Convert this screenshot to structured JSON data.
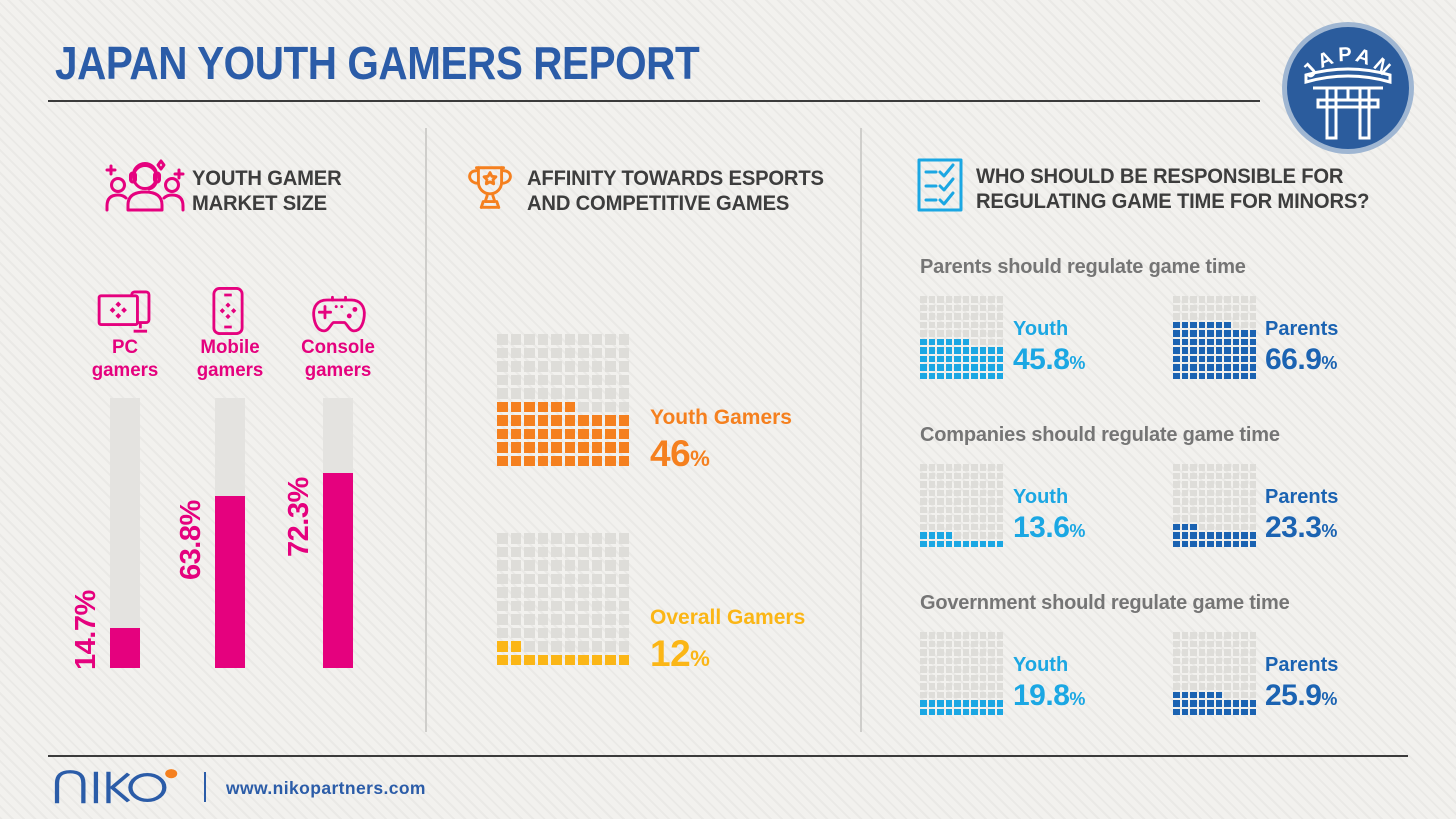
{
  "palette": {
    "title_blue": "#2B5CA8",
    "magenta": "#E5017E",
    "orange": "#F5801F",
    "yellow": "#FBB616",
    "youth_blue": "#1BA7E3",
    "parents_blue": "#1B63B2",
    "text_dark": "#3D3D3D",
    "heading_gray": "#757575",
    "waffle_empty": "#DEDDD9",
    "track_gray": "#E4E3E0",
    "badge_blue": "#2B5C9D"
  },
  "header": {
    "title": "JAPAN YOUTH GAMERS REPORT",
    "badge_label": "JAPAN",
    "badge_icon": "torii-gate-icon"
  },
  "market": {
    "icon": "gamer-group-icon",
    "title_line1": "YOUTH GAMER",
    "title_line2": "MARKET SIZE",
    "bar_color": "#E5017E",
    "bars": [
      {
        "icon": "pc-gamers-icon",
        "label_line1": "PC",
        "label_line2": "gamers",
        "value": 14.7,
        "display": "14.7%"
      },
      {
        "icon": "mobile-gamers-icon",
        "label_line1": "Mobile",
        "label_line2": "gamers",
        "value": 63.8,
        "display": "63.8%"
      },
      {
        "icon": "console-gamers-icon",
        "label_line1": "Console",
        "label_line2": "gamers",
        "value": 72.3,
        "display": "72.3%"
      }
    ]
  },
  "esports": {
    "icon": "trophy-icon",
    "title_line1": "AFFINITY TOWARDS ESPORTS",
    "title_line2": "AND COMPETITIVE GAMES",
    "waffles": [
      {
        "label": "Youth Gamers",
        "value": 46,
        "display": "46",
        "unit": "%",
        "color": "#F5801F"
      },
      {
        "label": "Overall Gamers",
        "value": 12,
        "display": "12",
        "unit": "%",
        "color": "#FBB616"
      }
    ]
  },
  "regulation": {
    "icon": "checklist-icon",
    "title_line1": "WHO SHOULD BE RESPONSIBLE FOR",
    "title_line2": "REGULATING GAME TIME FOR MINORS?",
    "groups": [
      {
        "heading": "Parents should regulate game time",
        "items": [
          {
            "label": "Youth",
            "value": 45.8,
            "display": "45.8",
            "unit": "%",
            "color": "#1BA7E3"
          },
          {
            "label": "Parents",
            "value": 66.9,
            "display": "66.9",
            "unit": "%",
            "color": "#1B63B2"
          }
        ]
      },
      {
        "heading": "Companies should regulate game time",
        "items": [
          {
            "label": "Youth",
            "value": 13.6,
            "display": "13.6",
            "unit": "%",
            "color": "#1BA7E3"
          },
          {
            "label": "Parents",
            "value": 23.3,
            "display": "23.3",
            "unit": "%",
            "color": "#1B63B2"
          }
        ]
      },
      {
        "heading": "Government should regulate game time",
        "items": [
          {
            "label": "Youth",
            "value": 19.8,
            "display": "19.8",
            "unit": "%",
            "color": "#1BA7E3"
          },
          {
            "label": "Parents",
            "value": 25.9,
            "display": "25.9",
            "unit": "%",
            "color": "#1B63B2"
          }
        ]
      }
    ]
  },
  "footer": {
    "logo_text": "niko",
    "url": "www.nikopartners.com"
  },
  "chart_data": [
    {
      "type": "bar",
      "variant": "vertical-percentage-bars",
      "title": "Youth Gamer Market Size",
      "categories": [
        "PC gamers",
        "Mobile gamers",
        "Console gamers"
      ],
      "values": [
        14.7,
        63.8,
        72.3
      ],
      "unit": "%",
      "ylim": [
        0,
        100
      ],
      "color": "#E5017E"
    },
    {
      "type": "bar",
      "variant": "waffle-10x10",
      "title": "Affinity towards esports and competitive games",
      "categories": [
        "Youth Gamers",
        "Overall Gamers"
      ],
      "values": [
        46,
        12
      ],
      "unit": "%",
      "colors": [
        "#F5801F",
        "#FBB616"
      ]
    },
    {
      "type": "bar",
      "variant": "waffle-10x10-pairs",
      "title": "Who should be responsible for regulating game time for minors?",
      "categories": [
        "Parents should regulate game time",
        "Companies should regulate game time",
        "Government should regulate game time"
      ],
      "series": [
        {
          "name": "Youth",
          "values": [
            45.8,
            13.6,
            19.8
          ],
          "color": "#1BA7E3"
        },
        {
          "name": "Parents",
          "values": [
            66.9,
            23.3,
            25.9
          ],
          "color": "#1B63B2"
        }
      ],
      "unit": "%"
    }
  ]
}
